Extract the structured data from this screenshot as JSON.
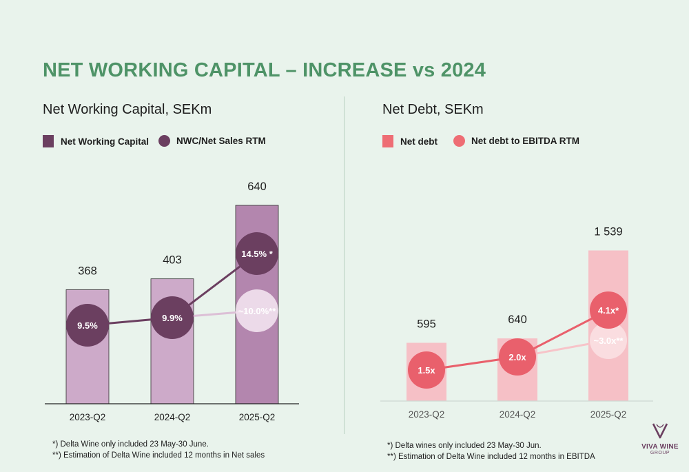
{
  "title": "NET WORKING CAPITAL – INCREASE vs 2024",
  "colors": {
    "title": "#4e9367",
    "nwc_bar_light": "#cdaac9",
    "nwc_bar_dark": "#b386ae",
    "nwc_dot": "#6b3f60",
    "nwc_est": "#f1e2ee",
    "nd_bar": "#f6c0c6",
    "nd_dot": "#e9606c",
    "nd_est": "#fadfe2"
  },
  "charts": [
    {
      "id": "nwc",
      "title": "Net Working Capital, SEKm",
      "legend": [
        {
          "label": "Net Working Capital",
          "shape": "square",
          "color": "#6b3f60"
        },
        {
          "label": "NWC/Net Sales RTM",
          "shape": "circle",
          "color": "#6b3f60"
        }
      ],
      "footnotes": [
        "*) Delta Wine only included 23 May-30 June.",
        "**) Estimation of Delta Wine included 12 months in Net sales"
      ]
    },
    {
      "id": "nd",
      "title": "Net Debt, SEKm",
      "legend": [
        {
          "label": "Net debt",
          "shape": "square",
          "color": "#ee6d74"
        },
        {
          "label": "Net debt to EBITDA RTM",
          "shape": "circle",
          "color": "#ee6d74"
        }
      ],
      "footnotes": [
        "*) Delta wines only included 23 May-30 Jun.",
        "**) Estimation of Delta Wine included 12 months in EBITDA"
      ]
    }
  ],
  "chart_data": [
    {
      "type": "bar",
      "title": "Net Working Capital, SEKm",
      "categories": [
        "2023-Q2",
        "2024-Q2",
        "2025-Q2"
      ],
      "series": [
        {
          "name": "Net Working Capital",
          "type": "bar",
          "values": [
            368,
            403,
            640
          ],
          "value_labels": [
            "368",
            "403",
            "640"
          ]
        },
        {
          "name": "NWC/Net Sales RTM",
          "type": "line",
          "values": [
            9.5,
            9.9,
            14.5
          ],
          "value_labels": [
            "9.5%",
            "9.9%",
            "14.5% *"
          ]
        },
        {
          "name": "",
          "type": "line",
          "values": [
            null,
            9.9,
            10.0
          ],
          "value_labels": [
            "",
            "",
            "~10.0%**"
          ]
        }
      ],
      "ylim": [
        0,
        680
      ]
    },
    {
      "type": "bar",
      "title": "Net Debt, SEKm",
      "categories": [
        "2023-Q2",
        "2024-Q2",
        "2025-Q2"
      ],
      "series": [
        {
          "name": "Net debt",
          "type": "bar",
          "values": [
            595,
            640,
            1539
          ],
          "value_labels": [
            "595",
            "640",
            "1 539"
          ]
        },
        {
          "name": "Net debt to EBITDA RTM",
          "type": "line",
          "values": [
            1.5,
            2.0,
            4.1
          ],
          "value_labels": [
            "1.5x",
            "2.0x",
            "4.1x*"
          ]
        },
        {
          "name": "",
          "type": "line",
          "values": [
            null,
            2.0,
            3.0
          ],
          "value_labels": [
            "",
            "",
            "~3.0x**"
          ]
        }
      ],
      "ylim": [
        0,
        2000
      ]
    }
  ],
  "logo": {
    "name": "VIVA WINE",
    "sub": "GROUP"
  }
}
